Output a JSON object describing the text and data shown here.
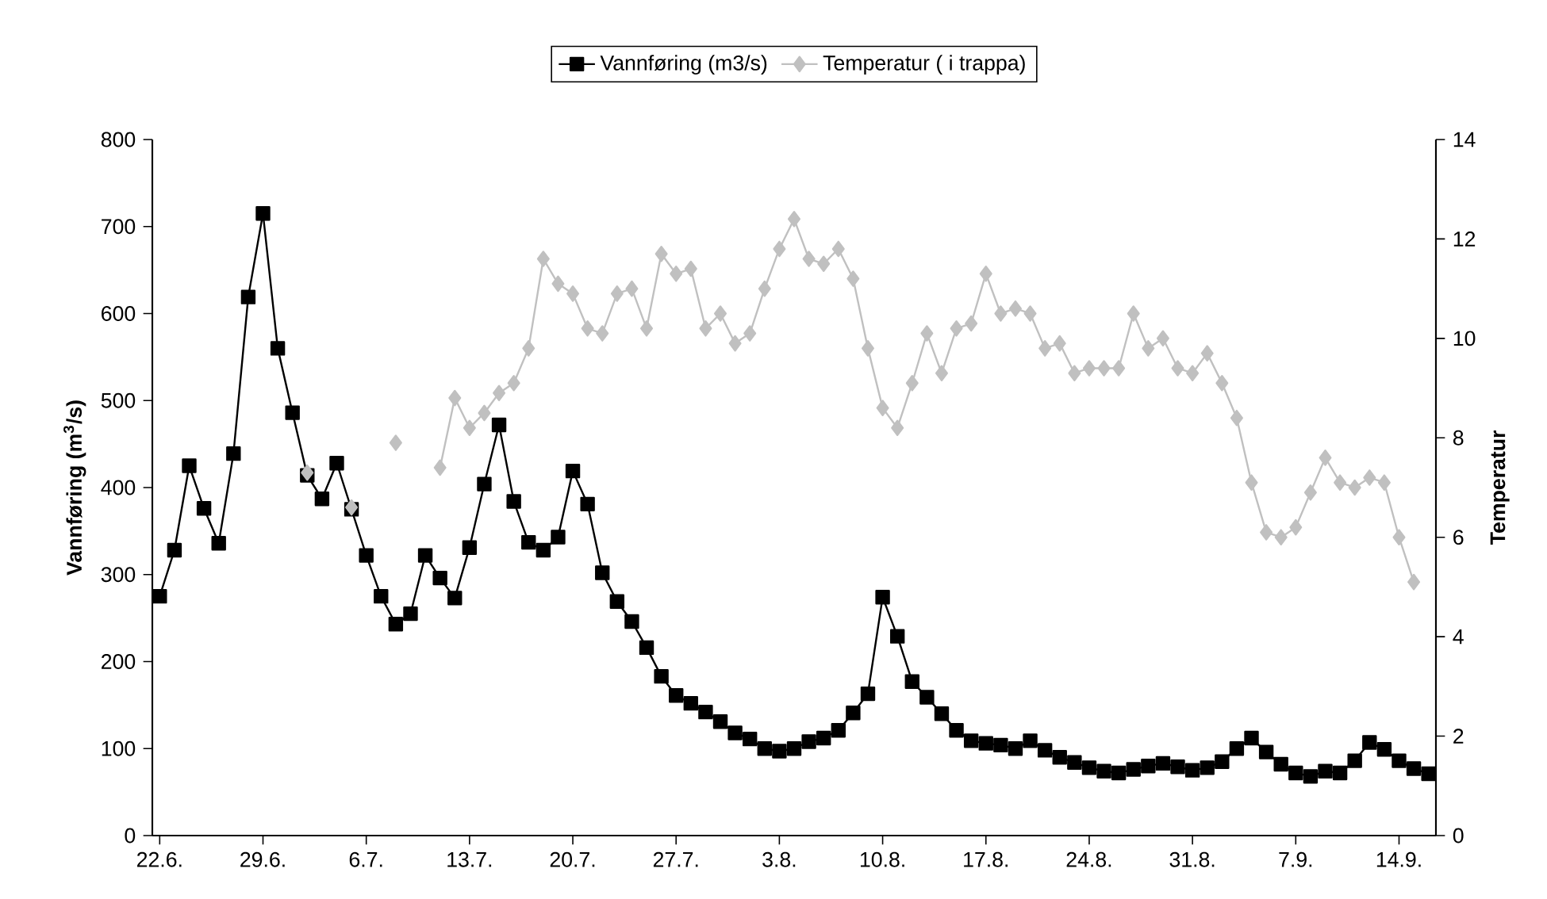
{
  "chart_data": {
    "type": "line",
    "categories": [
      "22.6.",
      null,
      null,
      null,
      null,
      null,
      null,
      "29.6.",
      null,
      null,
      null,
      null,
      null,
      null,
      "6.7.",
      null,
      null,
      null,
      null,
      null,
      null,
      "13.7.",
      null,
      null,
      null,
      null,
      null,
      null,
      "20.7.",
      null,
      null,
      null,
      null,
      null,
      null,
      "27.7.",
      null,
      null,
      null,
      null,
      null,
      null,
      "3.8.",
      null,
      null,
      null,
      null,
      null,
      null,
      "10.8.",
      null,
      null,
      null,
      null,
      null,
      null,
      "17.8.",
      null,
      null,
      null,
      null,
      null,
      null,
      "24.8.",
      null,
      null,
      null,
      null,
      null,
      null,
      "31.8.",
      null,
      null,
      null,
      null,
      null,
      null,
      "7.9.",
      null,
      null,
      null,
      null,
      null,
      null,
      "14.9.",
      null,
      null
    ],
    "ylabel": "Vannføring (m$^{3}$/s)",
    "y2label": "Temperatur",
    "ylim": [
      0,
      800
    ],
    "yticks": [
      0,
      100,
      200,
      300,
      400,
      500,
      600,
      700,
      800
    ],
    "y2lim": [
      0,
      14
    ],
    "y2ticks": [
      0,
      2,
      4,
      6,
      8,
      10,
      12,
      14
    ],
    "legend": "top",
    "series": [
      {
        "name": "Vannføring (m3/s)",
        "color": "#000000",
        "marker": "square",
        "values": [
          275,
          328,
          425,
          376,
          336,
          439,
          619,
          715,
          560,
          486,
          414,
          387,
          428,
          375,
          322,
          275,
          243,
          255,
          322,
          296,
          273,
          331,
          404,
          472,
          384,
          337,
          328,
          343,
          419,
          381,
          302,
          269,
          246,
          216,
          183,
          161,
          152,
          142,
          131,
          118,
          111,
          100,
          97,
          100,
          108,
          112,
          121,
          141,
          163,
          274,
          229,
          177,
          159,
          140,
          121,
          109,
          106,
          104,
          100,
          109,
          98,
          90,
          84,
          78,
          74,
          72,
          76,
          80,
          83,
          79,
          75,
          78,
          85,
          100,
          112,
          96,
          82,
          72,
          68,
          74,
          72,
          86,
          107,
          99,
          86,
          77,
          71
        ]
      },
      {
        "name": "Temperatur ( i trappa)",
        "color": "#c0c0c0",
        "marker": "diamond",
        "axis": "y2",
        "values": [
          null,
          null,
          null,
          null,
          null,
          null,
          null,
          null,
          null,
          null,
          7.3,
          null,
          null,
          6.6,
          null,
          null,
          7.9,
          null,
          null,
          7.4,
          8.8,
          8.2,
          8.5,
          8.9,
          9.1,
          9.8,
          11.6,
          11.1,
          10.9,
          10.2,
          10.1,
          10.9,
          11.0,
          10.2,
          11.7,
          11.3,
          11.4,
          10.2,
          10.5,
          9.9,
          10.1,
          11.0,
          11.8,
          12.4,
          11.6,
          11.5,
          11.8,
          11.2,
          9.8,
          8.6,
          8.2,
          9.1,
          10.1,
          9.3,
          10.2,
          10.3,
          11.3,
          10.5,
          10.6,
          10.5,
          9.8,
          9.9,
          9.3,
          9.4,
          9.4,
          9.4,
          10.5,
          9.8,
          10.0,
          9.4,
          9.3,
          9.7,
          9.1,
          8.4,
          7.1,
          6.1,
          6.0,
          6.2,
          6.9,
          7.6,
          7.1,
          7.0,
          7.2,
          7.1,
          6.0,
          5.1,
          null
        ]
      }
    ]
  }
}
